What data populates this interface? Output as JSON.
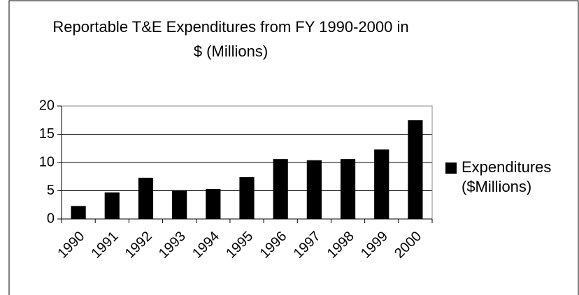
{
  "chart_data": {
    "type": "bar",
    "title": [
      "Reportable T&E Expenditures from FY 1990-2000 in",
      "$ (Millions)"
    ],
    "categories": [
      "1990",
      "1991",
      "1992",
      "1993",
      "1994",
      "1995",
      "1996",
      "1997",
      "1998",
      "1999",
      "2000"
    ],
    "series": [
      {
        "name": "Expenditures ($Millions)",
        "color": "#000000",
        "values": [
          2.3,
          4.7,
          7.3,
          5.1,
          5.3,
          7.4,
          10.6,
          10.4,
          10.6,
          12.3,
          17.5
        ]
      }
    ],
    "ylim": [
      0,
      20
    ],
    "yticks": [
      0,
      5,
      10,
      15,
      20
    ],
    "grid": true,
    "legend": "right"
  }
}
